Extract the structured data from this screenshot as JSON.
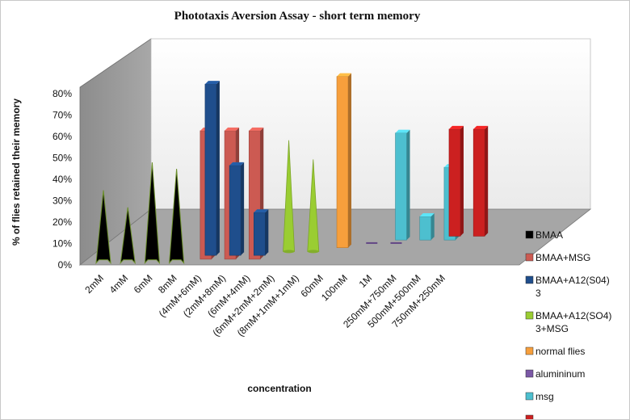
{
  "chart_data": {
    "type": "bar",
    "title": "Phototaxis Aversion Assay  - short term memory",
    "xlabel": "concentration",
    "ylabel": "% of flies retained their memory",
    "ylim": [
      0,
      80
    ],
    "ytick_labels": [
      "0%",
      "10%",
      "20%",
      "30%",
      "40%",
      "50%",
      "60%",
      "70%",
      "80%"
    ],
    "categories": [
      "2mM",
      "4mM",
      "6mM",
      "8mM",
      "(4mM+6mM)",
      "(2mM+8mM)",
      "(6mM+4mM)",
      "(6mM+2mM+2mM)",
      "(8mM+1mM+1mM)",
      "60mM",
      "100mM",
      "1M",
      "250mM+750mM",
      "500mM+500mM",
      "750mM+250mM"
    ],
    "legend_position": "right",
    "grid": false,
    "series": [
      {
        "name": "BMAA",
        "color": "#000000",
        "shape": "pyramid",
        "values": [
          34,
          26,
          47,
          44,
          null,
          null,
          null,
          null,
          null,
          null,
          null,
          null,
          null,
          null,
          null
        ]
      },
      {
        "name": "BMAA+MSG",
        "color": "#cc5a52",
        "shape": "column",
        "values": [
          null,
          null,
          null,
          null,
          60,
          60,
          60,
          null,
          null,
          null,
          null,
          null,
          null,
          null,
          null
        ]
      },
      {
        "name": "BMAA+A12(S04)\n3",
        "color": "#1f4e8c",
        "shape": "column",
        "values": [
          null,
          null,
          null,
          null,
          80,
          42,
          20,
          null,
          null,
          null,
          null,
          null,
          null,
          null,
          null
        ]
      },
      {
        "name": "BMAA+A12(SO4)\n3+MSG",
        "color": "#9acd32",
        "shape": "cone",
        "values": [
          null,
          null,
          null,
          null,
          null,
          null,
          null,
          52,
          43,
          null,
          null,
          null,
          null,
          null,
          null
        ]
      },
      {
        "name": "normal flies",
        "color": "#f79f3c",
        "shape": "column",
        "values": [
          null,
          null,
          null,
          null,
          null,
          null,
          null,
          null,
          null,
          80,
          null,
          null,
          null,
          null,
          null
        ]
      },
      {
        "name": "alumininum",
        "color": "#7b58a6",
        "shape": "column",
        "values": [
          null,
          null,
          null,
          null,
          null,
          null,
          null,
          null,
          null,
          null,
          0,
          0,
          null,
          null,
          null
        ]
      },
      {
        "name": "msg",
        "color": "#4dbfcf",
        "shape": "column",
        "values": [
          null,
          null,
          null,
          null,
          null,
          null,
          null,
          null,
          null,
          null,
          null,
          50,
          11,
          34,
          null
        ]
      },
      {
        "name": "",
        "color": "#cc2020",
        "shape": "column",
        "values": [
          null,
          null,
          null,
          null,
          null,
          null,
          null,
          null,
          null,
          null,
          null,
          null,
          null,
          50,
          50
        ]
      }
    ]
  }
}
